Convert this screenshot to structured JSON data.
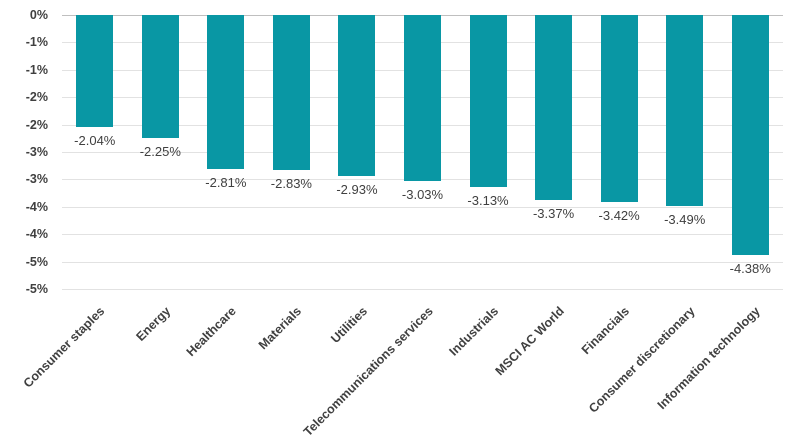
{
  "chart_data": {
    "type": "bar",
    "title": "",
    "xlabel": "",
    "ylabel": "",
    "categories": [
      "Consumer staples",
      "Energy",
      "Healthcare",
      "Materials",
      "Utilities",
      "Telecommunications services",
      "Industrials",
      "MSCI AC World",
      "Financials",
      "Consumer discretionary",
      "Information technology"
    ],
    "values": [
      -2.04,
      -2.25,
      -2.81,
      -2.83,
      -2.93,
      -3.03,
      -3.13,
      -3.37,
      -3.42,
      -3.49,
      -4.38
    ],
    "data_labels": [
      "-2.04%",
      "-2.25%",
      "-2.81%",
      "-2.83%",
      "-2.93%",
      "-3.03%",
      "-3.13%",
      "-3.37%",
      "-3.42%",
      "-3.49%",
      "-4.38%"
    ],
    "ylim": [
      0,
      -5
    ],
    "y_tick_interval": 0.5,
    "y_tick_labels": [
      "0%",
      "-1%",
      "-1%",
      "-2%",
      "-2%",
      "-3%",
      "-3%",
      "-4%",
      "-4%",
      "-5%",
      "-5%"
    ],
    "grid": true,
    "legend": "none",
    "category_label_rotation_deg": -45,
    "colors": {
      "bar": "#0997A4",
      "gridline": "#E2E2E2",
      "zero_axis_line": "#BFBFBF",
      "text": "#404040"
    }
  }
}
